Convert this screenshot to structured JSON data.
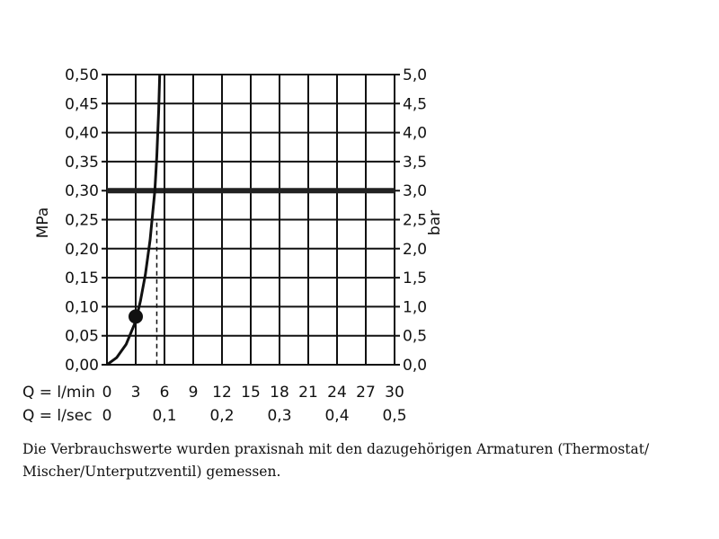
{
  "chart_data": {
    "type": "line",
    "left_axis": {
      "label": "MPa",
      "ticks": [
        "0,00",
        "0,05",
        "0,10",
        "0,15",
        "0,20",
        "0,25",
        "0,30",
        "0,35",
        "0,40",
        "0,45",
        "0,50"
      ],
      "range": [
        0,
        0.5
      ]
    },
    "right_axis": {
      "label": "bar",
      "ticks": [
        "0,0",
        "0,5",
        "1,0",
        "1,5",
        "2,0",
        "2,5",
        "3,0",
        "3,5",
        "4,0",
        "4,5",
        "5,0"
      ],
      "range": [
        0,
        5
      ]
    },
    "x_axis_lmin": {
      "label": "Q = l/min",
      "ticks": [
        "0",
        "3",
        "6",
        "9",
        "12",
        "15",
        "18",
        "21",
        "24",
        "27",
        "30"
      ],
      "range": [
        0,
        30
      ]
    },
    "x_axis_lsec": {
      "label": "Q = l/sec",
      "ticks": [
        "0",
        "0,1",
        "0,2",
        "0,3",
        "0,4",
        "0,5"
      ],
      "tick_values_lmin": [
        0,
        6,
        12,
        18,
        24,
        30
      ]
    },
    "grid": true,
    "series": [
      {
        "type": "curve",
        "x_lmin": [
          0,
          1,
          2,
          3,
          3.5,
          4,
          4.5,
          5,
          5.2,
          5.4,
          5.5
        ],
        "y_mpa": [
          0,
          0.012,
          0.035,
          0.075,
          0.11,
          0.155,
          0.215,
          0.3,
          0.36,
          0.44,
          0.5
        ]
      }
    ],
    "reference_line": {
      "y_mpa": 0.3
    },
    "marker_point": {
      "x_lmin": 3,
      "y_mpa": 0.083
    },
    "dashed_line": {
      "x_lmin": 5.2
    },
    "vertical_line": {
      "x_lmin": 6
    }
  },
  "caption": {
    "line1": "Die Verbrauchswerte wurden praxisnah mit den dazugehörigen Armaturen (Thermostat/",
    "line2": "Mischer/Unterputzventil) gemessen."
  }
}
